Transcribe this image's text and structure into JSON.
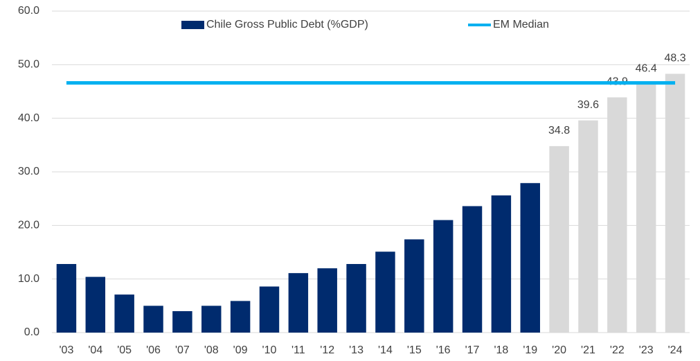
{
  "chart_data": {
    "type": "bar",
    "categories": [
      "'03",
      "'04",
      "'05",
      "'06",
      "'07",
      "'08",
      "'09",
      "'10",
      "'11",
      "'12",
      "'13",
      "'14",
      "'15",
      "'16",
      "'17",
      "'18",
      "'19",
      "'20",
      "'21",
      "'22",
      "'23",
      "'24"
    ],
    "series": [
      {
        "name": "Chile Gross Public Debt (%GDP)",
        "color": "#002b6e",
        "type": "bar",
        "values": [
          12.8,
          10.4,
          7.1,
          5.0,
          4.0,
          5.0,
          5.9,
          8.6,
          11.1,
          12.0,
          12.8,
          15.1,
          17.4,
          21.0,
          23.6,
          25.6,
          27.9,
          null,
          null,
          null,
          null,
          null
        ]
      },
      {
        "color": "#d9d9d9",
        "type": "bar",
        "data_labels": true,
        "values": [
          null,
          null,
          null,
          null,
          null,
          null,
          null,
          null,
          null,
          null,
          null,
          null,
          null,
          null,
          null,
          null,
          null,
          34.8,
          39.6,
          43.9,
          46.4,
          48.3
        ]
      },
      {
        "name": "EM Median",
        "color": "#00b0f0",
        "type": "line",
        "values": [
          46.6,
          46.6,
          46.6,
          46.6,
          46.6,
          46.6,
          46.6,
          46.6,
          46.6,
          46.6,
          46.6,
          46.6,
          46.6,
          46.6,
          46.6,
          46.6,
          46.6,
          46.6,
          46.6,
          46.6,
          46.6,
          46.6
        ]
      }
    ],
    "ylim": [
      0,
      60
    ],
    "yticks": [
      {
        "value": 0,
        "label": "0.0"
      },
      {
        "value": 10,
        "label": "10.0"
      },
      {
        "value": 20,
        "label": "20.0"
      },
      {
        "value": 30,
        "label": "30.0"
      },
      {
        "value": 40,
        "label": "40.0"
      },
      {
        "value": 50,
        "label": "50.0"
      },
      {
        "value": 60,
        "label": "60.0"
      }
    ],
    "grid": true,
    "legend": "top"
  }
}
